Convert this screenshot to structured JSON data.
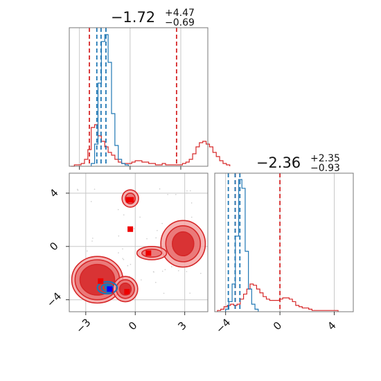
{
  "chart_data": [
    {
      "type": "step-histogram",
      "panel": "marginal-x",
      "title": {
        "median": "−1.72",
        "upper": "+4.47",
        "lower": "−0.69"
      },
      "x_range": [
        -3.6,
        4.6
      ],
      "bin_width": 0.2,
      "series": [
        {
          "color": "#d62728",
          "bins_start": -3.5,
          "values": [
            0,
            1,
            1,
            2,
            5,
            12,
            28,
            30,
            22,
            18,
            14,
            10,
            8,
            5,
            3,
            2,
            2,
            2,
            3,
            4,
            4,
            3,
            3,
            2,
            2,
            1,
            1,
            2,
            1,
            1,
            1,
            1,
            1,
            2,
            3,
            5,
            9,
            14,
            17,
            18,
            16,
            14,
            10,
            7,
            4,
            2,
            1
          ],
          "lines": [
            -2.41,
            2.75
          ]
        },
        {
          "color": "#1f77b4",
          "bins_start": -2.3,
          "values": [
            2,
            16,
            60,
            90,
            95,
            75,
            38,
            15,
            5,
            2,
            1
          ],
          "lines": [
            -1.97,
            -1.72,
            -1.43
          ]
        }
      ]
    },
    {
      "type": "step-histogram",
      "panel": "marginal-y",
      "title": {
        "median": "−2.36",
        "upper": "+2.35",
        "lower": "−0.93"
      },
      "x_range": [
        -4.8,
        5.4
      ],
      "x_ticks": [
        "−4",
        "0",
        "4"
      ],
      "bin_width": 0.24,
      "series": [
        {
          "color": "#d62728",
          "bins_start": -4.6,
          "values": [
            1,
            2,
            4,
            5,
            6,
            5,
            6,
            10,
            14,
            18,
            22,
            21,
            18,
            15,
            12,
            10,
            9,
            9,
            9,
            10,
            11,
            11,
            10,
            8,
            5,
            4,
            3,
            3,
            2,
            1,
            1,
            1,
            1,
            1,
            1,
            1,
            1
          ],
          "lines": [
            -3.29,
            0.0
          ]
        },
        {
          "color": "#1f77b4",
          "bins_start": -4.0,
          "values": [
            2,
            8,
            22,
            60,
            105,
            98,
            48,
            18,
            6,
            2
          ],
          "lines": [
            -3.8,
            -3.3,
            -2.95
          ]
        }
      ]
    },
    {
      "type": "contour-2d",
      "panel": "joint",
      "x_range": [
        -4.0,
        4.4
      ],
      "y_range": [
        -4.9,
        5.5
      ],
      "x_ticks": [
        "−3",
        "0",
        "3"
      ],
      "y_ticks": [
        "−4",
        "0",
        "4"
      ],
      "series": [
        {
          "color": "#d62728",
          "blobs": [
            {
              "cx": -2.3,
              "cy": -2.5,
              "levels": [
                [
                  1.55,
                  1.75
                ],
                [
                  1.35,
                  1.5
                ],
                [
                  1.05,
                  1.15
                ]
              ]
            },
            {
              "cx": -0.6,
              "cy": -3.2,
              "levels": [
                [
                  0.75,
                  0.95
                ],
                [
                  0.55,
                  0.7
                ],
                [
                  0.35,
                  0.45
                ]
              ]
            },
            {
              "cx": 2.9,
              "cy": 0.2,
              "levels": [
                [
                  1.35,
                  1.75
                ],
                [
                  1.05,
                  1.35
                ],
                [
                  0.65,
                  0.9
                ]
              ]
            },
            {
              "cx": 1.0,
              "cy": -0.5,
              "levels": [
                [
                  0.9,
                  0.5
                ],
                [
                  0.6,
                  0.3
                ]
              ]
            },
            {
              "cx": -0.3,
              "cy": 3.6,
              "levels": [
                [
                  0.5,
                  0.65
                ],
                [
                  0.3,
                  0.4
                ]
              ]
            }
          ],
          "points": [
            [
              -2.1,
              -2.6
            ],
            [
              -1.5,
              -3.3
            ],
            [
              -0.5,
              -3.4
            ],
            [
              -0.3,
              1.3
            ],
            [
              0.8,
              -0.5
            ],
            [
              -0.4,
              3.5
            ],
            [
              -0.25,
              3.5
            ]
          ]
        },
        {
          "color": "#1f77b4",
          "blobs": [
            {
              "cx": -1.7,
              "cy": -3.1,
              "levels": [
                [
                  0.6,
                  0.45
                ],
                [
                  0.35,
                  0.28
                ]
              ]
            }
          ],
          "points": [
            [
              -1.6,
              -3.3
            ],
            [
              -1.7,
              -3.0
            ]
          ]
        }
      ],
      "true_point": {
        "x": -1.55,
        "y": -3.2,
        "color": "#0000ff"
      }
    }
  ]
}
